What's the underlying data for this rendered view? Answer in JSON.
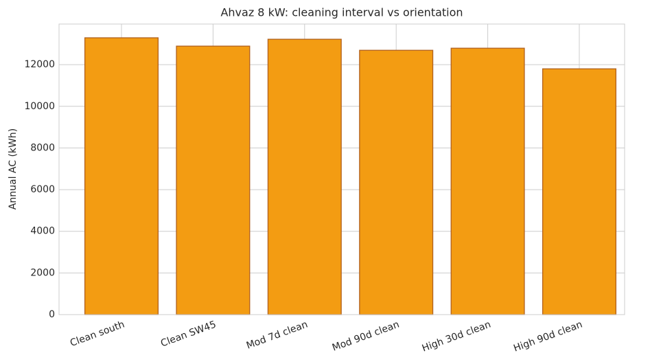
{
  "chart_data": {
    "type": "bar",
    "title": "Ahvaz 8 kW: cleaning interval vs orientation",
    "y_label": "Annual AC (kWh)",
    "categories": [
      "Clean south",
      "Clean SW45",
      "Mod 7d clean",
      "Mod 90d clean",
      "High 30d clean",
      "High 90d clean"
    ],
    "values": [
      13290,
      12890,
      13220,
      12690,
      12790,
      11800
    ],
    "color": "#f39c12",
    "edge_color": "#b0601e",
    "ylim": [
      0,
      13950
    ],
    "yticks": [
      0,
      2000,
      4000,
      6000,
      8000,
      10000,
      12000
    ],
    "grid": true
  }
}
